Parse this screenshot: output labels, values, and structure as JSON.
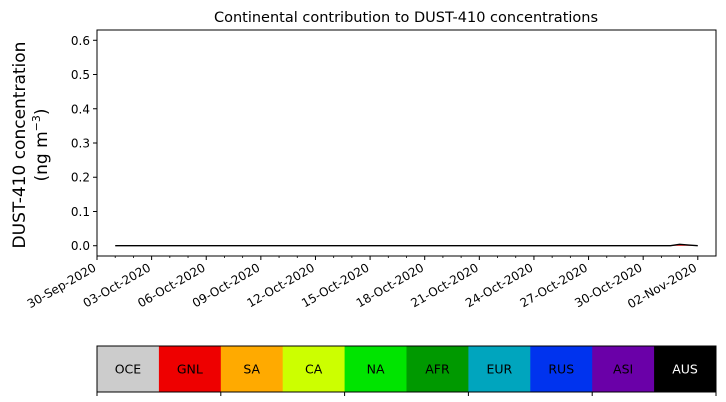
{
  "chart_data": {
    "type": "area",
    "stacked": true,
    "title": "Continental contribution to DUST-410 concentrations",
    "ylabel_line1": "DUST-410 concentration",
    "ylabel_line2_prefix": "(ng m",
    "ylabel_line2_sup": "−3",
    "ylabel_line2_suffix": ")",
    "xlim": [
      "2020-09-30",
      "2020-11-03"
    ],
    "ylim": [
      -0.03,
      0.63
    ],
    "yticks": [
      0.0,
      0.1,
      0.2,
      0.3,
      0.4,
      0.5,
      0.6
    ],
    "ytick_labels": [
      "0.0",
      "0.1",
      "0.2",
      "0.3",
      "0.4",
      "0.5",
      "0.6"
    ],
    "xticks": [
      "2020-09-30",
      "2020-10-03",
      "2020-10-06",
      "2020-10-09",
      "2020-10-12",
      "2020-10-15",
      "2020-10-18",
      "2020-10-21",
      "2020-10-24",
      "2020-10-27",
      "2020-10-30",
      "2020-11-02"
    ],
    "xtick_labels": [
      "30-Sep-2020",
      "03-Oct-2020",
      "06-Oct-2020",
      "09-Oct-2020",
      "12-Oct-2020",
      "15-Oct-2020",
      "18-Oct-2020",
      "21-Oct-2020",
      "24-Oct-2020",
      "27-Oct-2020",
      "30-Oct-2020",
      "02-Nov-2020"
    ],
    "x": [
      "2020-10-01T00:00",
      "2020-10-01T12:00",
      "2020-10-02T00:00",
      "2020-10-02T12:00",
      "2020-10-03T00:00",
      "2020-10-03T12:00",
      "2020-10-04T00:00",
      "2020-10-04T12:00",
      "2020-10-05T00:00",
      "2020-10-05T12:00",
      "2020-10-06T00:00",
      "2020-10-06T12:00",
      "2020-10-07T00:00",
      "2020-10-07T12:00",
      "2020-10-08T00:00",
      "2020-10-08T12:00",
      "2020-10-09T00:00",
      "2020-10-09T12:00",
      "2020-10-10T00:00",
      "2020-10-10T12:00",
      "2020-10-11T00:00",
      "2020-10-11T12:00",
      "2020-10-12T00:00",
      "2020-10-12T12:00",
      "2020-10-13T00:00",
      "2020-10-13T12:00",
      "2020-10-14T00:00",
      "2020-10-14T12:00",
      "2020-10-15T00:00",
      "2020-10-15T12:00",
      "2020-10-16T00:00",
      "2020-10-16T12:00",
      "2020-10-17T00:00",
      "2020-10-17T12:00",
      "2020-10-18T00:00",
      "2020-10-18T12:00",
      "2020-10-19T00:00",
      "2020-10-19T12:00",
      "2020-10-20T00:00",
      "2020-10-20T12:00",
      "2020-10-21T00:00",
      "2020-10-21T12:00",
      "2020-10-22T00:00",
      "2020-10-22T12:00",
      "2020-10-23T00:00",
      "2020-10-23T12:00",
      "2020-10-24T00:00",
      "2020-10-24T12:00",
      "2020-10-25T00:00",
      "2020-10-25T12:00",
      "2020-10-26T00:00",
      "2020-10-26T12:00",
      "2020-10-27T00:00",
      "2020-10-27T12:00",
      "2020-10-28T00:00",
      "2020-10-28T12:00",
      "2020-10-29T00:00",
      "2020-10-29T12:00",
      "2020-10-30T00:00",
      "2020-10-30T12:00",
      "2020-10-31T00:00",
      "2020-10-31T12:00",
      "2020-11-01T00:00",
      "2020-11-01T12:00",
      "2020-11-02T00:00"
    ],
    "series": [
      {
        "name": "OCE",
        "color": "#cccccc",
        "values": [
          0,
          0,
          0,
          0,
          0,
          0,
          0,
          0,
          0,
          0,
          0,
          0,
          0,
          0,
          0,
          0,
          0,
          0,
          0,
          0,
          0,
          0,
          0,
          0,
          0,
          0,
          0,
          0,
          0,
          0,
          0,
          0,
          0,
          0,
          0,
          0,
          0,
          0,
          0,
          0,
          0,
          0,
          0,
          0,
          0,
          0,
          0,
          0,
          0,
          0,
          0,
          0,
          0,
          0,
          0,
          0,
          0,
          0,
          0,
          0,
          0,
          0,
          0,
          0,
          0
        ]
      },
      {
        "name": "GNL",
        "color": "#ee0000",
        "values": [
          0,
          0,
          0,
          0,
          0,
          0,
          0,
          0,
          0,
          0,
          0,
          0,
          0,
          0,
          0,
          0,
          0,
          0,
          0,
          0,
          0,
          0,
          0,
          0,
          0,
          0,
          0,
          0,
          0,
          0,
          0,
          0,
          0,
          0,
          0,
          0,
          0,
          0,
          0,
          0,
          0,
          0,
          0,
          0,
          0,
          0,
          0,
          0,
          0,
          0,
          0,
          0,
          0,
          0,
          0,
          0,
          0,
          0,
          0,
          0,
          0,
          0,
          0.004,
          0.002,
          0
        ]
      },
      {
        "name": "SA",
        "color": "#ffaa00",
        "values": [
          0,
          0,
          0,
          0,
          0,
          0,
          0,
          0,
          0,
          0,
          0,
          0,
          0,
          0,
          0,
          0,
          0,
          0,
          0,
          0,
          0,
          0,
          0,
          0,
          0,
          0,
          0,
          0,
          0,
          0,
          0,
          0,
          0,
          0,
          0,
          0,
          0,
          0,
          0,
          0,
          0,
          0,
          0,
          0,
          0,
          0,
          0,
          0,
          0,
          0,
          0,
          0,
          0,
          0,
          0,
          0,
          0,
          0,
          0,
          0,
          0,
          0,
          0,
          0,
          0
        ]
      },
      {
        "name": "CA",
        "color": "#ccff00",
        "values": [
          0,
          0,
          0,
          0,
          0,
          0,
          0,
          0,
          0,
          0,
          0,
          0,
          0,
          0,
          0,
          0,
          0,
          0,
          0,
          0,
          0,
          0,
          0,
          0,
          0,
          0,
          0,
          0,
          0,
          0,
          0,
          0,
          0,
          0,
          0,
          0,
          0,
          0,
          0,
          0,
          0,
          0,
          0,
          0,
          0,
          0,
          0,
          0,
          0,
          0,
          0,
          0,
          0,
          0,
          0,
          0,
          0,
          0,
          0,
          0,
          0,
          0,
          0,
          0,
          0
        ]
      },
      {
        "name": "NA",
        "color": "#00e400",
        "values": [
          0,
          0,
          0,
          0,
          0,
          0,
          0,
          0,
          0,
          0,
          0,
          0,
          0,
          0,
          0,
          0,
          0,
          0,
          0,
          0,
          0,
          0,
          0,
          0,
          0,
          0,
          0,
          0,
          0,
          0,
          0,
          0,
          0,
          0,
          0,
          0,
          0,
          0,
          0,
          0,
          0,
          0,
          0,
          0,
          0,
          0,
          0,
          0,
          0,
          0,
          0,
          0,
          0,
          0,
          0,
          0,
          0,
          0,
          0,
          0,
          0,
          0,
          0,
          0,
          0
        ]
      },
      {
        "name": "AFR",
        "color": "#009900",
        "values": [
          0,
          0,
          0,
          0,
          0,
          0,
          0,
          0,
          0,
          0,
          0,
          0,
          0,
          0,
          0,
          0,
          0,
          0,
          0,
          0,
          0,
          0,
          0,
          0,
          0,
          0,
          0,
          0,
          0,
          0,
          0,
          0,
          0,
          0,
          0,
          0,
          0,
          0,
          0,
          0,
          0,
          0,
          0,
          0,
          0,
          0,
          0,
          0,
          0,
          0,
          0,
          0,
          0,
          0,
          0,
          0,
          0,
          0,
          0,
          0,
          0,
          0,
          0,
          0,
          0
        ]
      },
      {
        "name": "EUR",
        "color": "#00a5be",
        "values": [
          0,
          0,
          0,
          0,
          0,
          0,
          0,
          0,
          0,
          0,
          0,
          0,
          0,
          0,
          0,
          0,
          0,
          0,
          0,
          0,
          0,
          0,
          0,
          0,
          0,
          0,
          0,
          0,
          0,
          0,
          0,
          0,
          0,
          0,
          0,
          0,
          0,
          0,
          0,
          0,
          0,
          0,
          0,
          0,
          0,
          0,
          0,
          0,
          0,
          0,
          0,
          0,
          0,
          0,
          0,
          0,
          0,
          0,
          0,
          0,
          0,
          0,
          0,
          0,
          0
        ]
      },
      {
        "name": "RUS",
        "color": "#0033ee",
        "values": [
          0,
          0,
          0,
          0,
          0,
          0,
          0,
          0,
          0,
          0,
          0,
          0,
          0,
          0,
          0,
          0,
          0,
          0,
          0,
          0,
          0,
          0,
          0,
          0,
          0,
          0,
          0,
          0,
          0,
          0,
          0,
          0,
          0,
          0,
          0,
          0,
          0,
          0,
          0,
          0,
          0,
          0,
          0,
          0,
          0,
          0,
          0,
          0,
          0,
          0,
          0,
          0,
          0,
          0,
          0,
          0,
          0,
          0,
          0,
          0,
          0,
          0,
          0,
          0,
          0
        ]
      },
      {
        "name": "ASI",
        "color": "#6a00a8",
        "values": [
          0,
          0,
          0,
          0,
          0,
          0,
          0,
          0,
          0,
          0,
          0,
          0,
          0,
          0,
          0,
          0,
          0,
          0,
          0,
          0,
          0,
          0,
          0,
          0,
          0,
          0,
          0,
          0,
          0,
          0,
          0,
          0,
          0,
          0,
          0,
          0,
          0,
          0,
          0,
          0,
          0,
          0,
          0,
          0,
          0,
          0,
          0,
          0,
          0,
          0,
          0,
          0,
          0,
          0,
          0,
          0,
          0,
          0,
          0,
          0,
          0,
          0,
          0,
          0,
          0
        ]
      },
      {
        "name": "AUS",
        "color": "#000000",
        "values": [
          0,
          0,
          0,
          0,
          0,
          0,
          0,
          0,
          0,
          0,
          0,
          0,
          0,
          0,
          0,
          0,
          0,
          0,
          0,
          0,
          0,
          0,
          0,
          0,
          0,
          0,
          0,
          0,
          0,
          0,
          0,
          0,
          0,
          0,
          0,
          0,
          0,
          0,
          0,
          0,
          0,
          0,
          0,
          0,
          0,
          0,
          0,
          0,
          0,
          0,
          0,
          0,
          0,
          0,
          0,
          0,
          0,
          0,
          0,
          0,
          0,
          0,
          0,
          0,
          0
        ]
      }
    ],
    "colorbar": {
      "labels": [
        "OCE",
        "GNL",
        "SA",
        "CA",
        "NA",
        "AFR",
        "EUR",
        "RUS",
        "ASI",
        "AUS"
      ],
      "colors": [
        "#cccccc",
        "#ee0000",
        "#ffaa00",
        "#ccff00",
        "#00e400",
        "#009900",
        "#00a5be",
        "#0033ee",
        "#6a00a8",
        "#000000"
      ],
      "text_colors": [
        "#000000",
        "#000000",
        "#000000",
        "#000000",
        "#000000",
        "#000000",
        "#000000",
        "#000000",
        "#000000",
        "#ffffff"
      ]
    }
  }
}
